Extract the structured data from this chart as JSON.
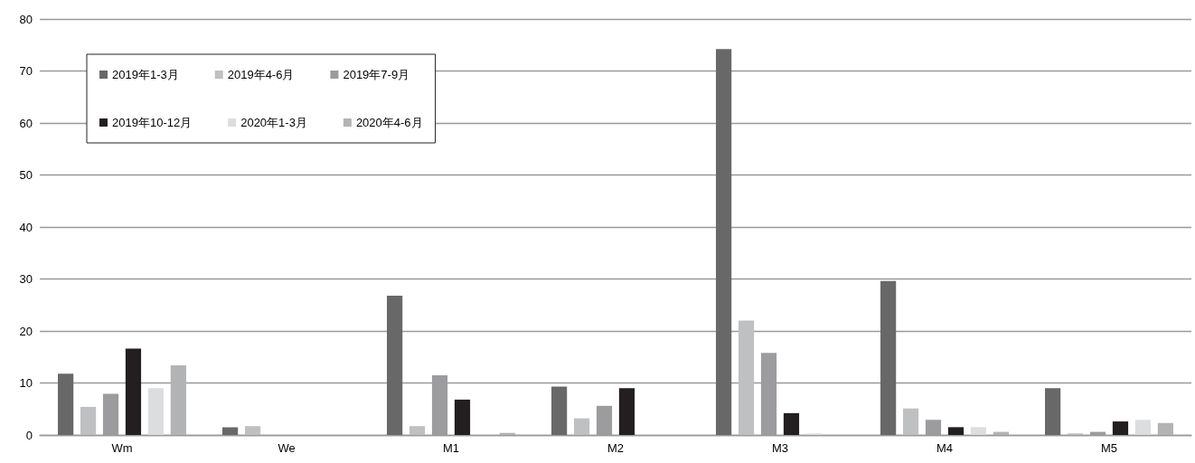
{
  "chart_data": {
    "type": "bar",
    "categories": [
      "Wm",
      "We",
      "M1",
      "M2",
      "M3",
      "M4",
      "M5"
    ],
    "series": [
      {
        "name": "2019年1-3月",
        "color": "#686868",
        "values": [
          11.8,
          1.5,
          26.8,
          9.3,
          74.2,
          29.6,
          9.0
        ]
      },
      {
        "name": "2019年4-6月",
        "color": "#bfc0c2",
        "values": [
          5.4,
          1.7,
          1.7,
          3.2,
          22.0,
          5.1,
          0.3
        ]
      },
      {
        "name": "2019年7-9月",
        "color": "#9c9c9e",
        "values": [
          7.9,
          0,
          11.5,
          5.6,
          15.8,
          2.9,
          0.6
        ]
      },
      {
        "name": "2019年10-12月",
        "color": "#231f20",
        "values": [
          16.6,
          0,
          6.8,
          9.0,
          4.2,
          1.5,
          2.6
        ]
      },
      {
        "name": "2020年1-3月",
        "color": "#dcdddf",
        "values": [
          9.0,
          0,
          0,
          0,
          0.3,
          1.5,
          2.9
        ]
      },
      {
        "name": "2020年4-6月",
        "color": "#b2b3b5",
        "values": [
          13.4,
          0,
          0.4,
          null,
          null,
          0.6,
          2.3
        ]
      }
    ],
    "ylim": [
      0,
      80
    ],
    "yticks": [
      0,
      10,
      20,
      30,
      40,
      50,
      60,
      70,
      80
    ],
    "grid": "y",
    "legend": "top left"
  }
}
